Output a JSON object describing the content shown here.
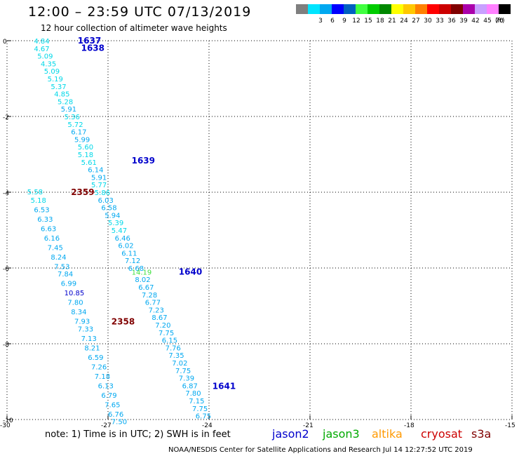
{
  "header": {
    "title": "12:00 – 23:59 UTC 07/13/2019",
    "subtitle": "12 hour collection of altimeter wave heights"
  },
  "color_scale": {
    "unit_label": "(ft)",
    "bins": [
      {
        "label": "",
        "color": "#7f7f7f"
      },
      {
        "label": "3",
        "color": "#00e5ff"
      },
      {
        "label": "6",
        "color": "#00a8f0"
      },
      {
        "label": "9",
        "color": "#0000ff"
      },
      {
        "label": "12",
        "color": "#0060c0"
      },
      {
        "label": "15",
        "color": "#40ff40"
      },
      {
        "label": "18",
        "color": "#00cc00"
      },
      {
        "label": "21",
        "color": "#008800"
      },
      {
        "label": "24",
        "color": "#ffff00"
      },
      {
        "label": "27",
        "color": "#ffc800"
      },
      {
        "label": "30",
        "color": "#ff8000"
      },
      {
        "label": "33",
        "color": "#ff0000"
      },
      {
        "label": "36",
        "color": "#cc0000"
      },
      {
        "label": "39",
        "color": "#800000"
      },
      {
        "label": "42",
        "color": "#aa00aa"
      },
      {
        "label": "45",
        "color": "#c8a0ff"
      },
      {
        "label": "70",
        "color": "#ff80ff"
      },
      {
        "label": "",
        "color": "#000000"
      }
    ]
  },
  "chart_data": {
    "type": "scatter",
    "xlim": [
      -30,
      -15
    ],
    "ylim": [
      -10,
      0
    ],
    "x_ticks": [
      "-30",
      "-27",
      "-24",
      "-21",
      "-18",
      "-15"
    ],
    "y_ticks": [
      "0",
      "-2",
      "-4",
      "-6",
      "-8",
      "-10"
    ],
    "track_labels": [
      {
        "text": "1637",
        "x": -27.9,
        "y": 0.02,
        "color": "#0000cc"
      },
      {
        "text": "1638",
        "x": -27.8,
        "y": -0.18,
        "color": "#0000cc"
      },
      {
        "text": "1639",
        "x": -26.3,
        "y": -3.15,
        "color": "#0000cc"
      },
      {
        "text": "2359",
        "x": -28.1,
        "y": -3.98,
        "color": "#800000"
      },
      {
        "text": "1640",
        "x": -24.9,
        "y": -6.08,
        "color": "#0000cc"
      },
      {
        "text": "2358",
        "x": -26.9,
        "y": -7.4,
        "color": "#800000"
      },
      {
        "text": "1641",
        "x": -23.9,
        "y": -9.1,
        "color": "#0000cc"
      }
    ],
    "points": [
      {
        "v": "4.84",
        "x": -29.2,
        "y": 0.0,
        "color": "#00d8e8"
      },
      {
        "v": "4.67",
        "x": -29.2,
        "y": -0.2,
        "color": "#00d8e8"
      },
      {
        "v": "5.09",
        "x": -29.1,
        "y": -0.4,
        "color": "#00d8e8"
      },
      {
        "v": "4.35",
        "x": -29.0,
        "y": -0.6,
        "color": "#00d8e8"
      },
      {
        "v": "5.09",
        "x": -28.9,
        "y": -0.8,
        "color": "#00d8e8"
      },
      {
        "v": "5.19",
        "x": -28.8,
        "y": -1.0,
        "color": "#00d8e8"
      },
      {
        "v": "5.37",
        "x": -28.7,
        "y": -1.2,
        "color": "#00d8e8"
      },
      {
        "v": "4.85",
        "x": -28.6,
        "y": -1.4,
        "color": "#00d8e8"
      },
      {
        "v": "5.28",
        "x": -28.5,
        "y": -1.6,
        "color": "#00d8e8"
      },
      {
        "v": "5.91",
        "x": -28.4,
        "y": -1.8,
        "color": "#00a8f0"
      },
      {
        "v": "5.36",
        "x": -28.3,
        "y": -2.0,
        "color": "#00d8e8"
      },
      {
        "v": "5.72",
        "x": -28.2,
        "y": -2.2,
        "color": "#00d8e8"
      },
      {
        "v": "6.17",
        "x": -28.1,
        "y": -2.4,
        "color": "#00a8f0"
      },
      {
        "v": "5.99",
        "x": -28.0,
        "y": -2.6,
        "color": "#00a8f0"
      },
      {
        "v": "5.60",
        "x": -27.9,
        "y": -2.8,
        "color": "#00d8e8"
      },
      {
        "v": "5.18",
        "x": -27.9,
        "y": -3.0,
        "color": "#00d8e8"
      },
      {
        "v": "5.61",
        "x": -27.8,
        "y": -3.2,
        "color": "#00d8e8"
      },
      {
        "v": "6.14",
        "x": -27.6,
        "y": -3.4,
        "color": "#00a8f0"
      },
      {
        "v": "5.91",
        "x": -27.5,
        "y": -3.6,
        "color": "#00a8f0"
      },
      {
        "v": "5.77",
        "x": -27.5,
        "y": -3.8,
        "color": "#00d8e8"
      },
      {
        "v": "5.86",
        "x": -27.4,
        "y": -4.0,
        "color": "#00d8e8"
      },
      {
        "v": "6.03",
        "x": -27.3,
        "y": -4.2,
        "color": "#00a8f0"
      },
      {
        "v": "6.58",
        "x": -27.2,
        "y": -4.4,
        "color": "#00a8f0"
      },
      {
        "v": "5.94",
        "x": -27.1,
        "y": -4.6,
        "color": "#00a8f0"
      },
      {
        "v": "5.39",
        "x": -27.0,
        "y": -4.8,
        "color": "#00d8e8"
      },
      {
        "v": "5.47",
        "x": -26.9,
        "y": -5.0,
        "color": "#00d8e8"
      },
      {
        "v": "6.46",
        "x": -26.8,
        "y": -5.2,
        "color": "#00a8f0"
      },
      {
        "v": "6.02",
        "x": -26.7,
        "y": -5.4,
        "color": "#00a8f0"
      },
      {
        "v": "6.11",
        "x": -26.6,
        "y": -5.6,
        "color": "#00a8f0"
      },
      {
        "v": "7.12",
        "x": -26.5,
        "y": -5.8,
        "color": "#00a8f0"
      },
      {
        "v": "6.68",
        "x": -26.4,
        "y": -6.0,
        "color": "#00a8f0"
      },
      {
        "v": "14.19",
        "x": -26.3,
        "y": -6.1,
        "color": "#40e040"
      },
      {
        "v": "8.02",
        "x": -26.2,
        "y": -6.3,
        "color": "#00a8f0"
      },
      {
        "v": "6.67",
        "x": -26.1,
        "y": -6.5,
        "color": "#00a8f0"
      },
      {
        "v": "7.28",
        "x": -26.0,
        "y": -6.7,
        "color": "#00a8f0"
      },
      {
        "v": "6.77",
        "x": -25.9,
        "y": -6.9,
        "color": "#00a8f0"
      },
      {
        "v": "7.23",
        "x": -25.8,
        "y": -7.1,
        "color": "#00a8f0"
      },
      {
        "v": "8.67",
        "x": -25.7,
        "y": -7.3,
        "color": "#00a8f0"
      },
      {
        "v": "7.20",
        "x": -25.6,
        "y": -7.5,
        "color": "#00a8f0"
      },
      {
        "v": "7.75",
        "x": -25.5,
        "y": -7.7,
        "color": "#00a8f0"
      },
      {
        "v": "6.15",
        "x": -25.4,
        "y": -7.9,
        "color": "#00a8f0"
      },
      {
        "v": "7.76",
        "x": -25.3,
        "y": -8.1,
        "color": "#00a8f0"
      },
      {
        "v": "7.35",
        "x": -25.2,
        "y": -8.3,
        "color": "#00a8f0"
      },
      {
        "v": "7.02",
        "x": -25.1,
        "y": -8.5,
        "color": "#00a8f0"
      },
      {
        "v": "7.75",
        "x": -25.0,
        "y": -8.7,
        "color": "#00a8f0"
      },
      {
        "v": "7.39",
        "x": -24.9,
        "y": -8.9,
        "color": "#00a8f0"
      },
      {
        "v": "6.87",
        "x": -24.8,
        "y": -9.1,
        "color": "#00a8f0"
      },
      {
        "v": "7.80",
        "x": -24.7,
        "y": -9.3,
        "color": "#00a8f0"
      },
      {
        "v": "7.15",
        "x": -24.6,
        "y": -9.5,
        "color": "#00a8f0"
      },
      {
        "v": "7.75",
        "x": -24.5,
        "y": -9.7,
        "color": "#00a8f0"
      },
      {
        "v": "6.75",
        "x": -24.4,
        "y": -9.9,
        "color": "#00a8f0"
      },
      {
        "v": "5.58",
        "x": -29.4,
        "y": -3.98,
        "color": "#00d8e8"
      },
      {
        "v": "5.18",
        "x": -29.3,
        "y": -4.2,
        "color": "#00d8e8"
      },
      {
        "v": "6.53",
        "x": -29.2,
        "y": -4.45,
        "color": "#00a8f0"
      },
      {
        "v": "6.33",
        "x": -29.1,
        "y": -4.7,
        "color": "#00a8f0"
      },
      {
        "v": "6.63",
        "x": -29.0,
        "y": -4.95,
        "color": "#00a8f0"
      },
      {
        "v": "6.16",
        "x": -28.9,
        "y": -5.2,
        "color": "#00a8f0"
      },
      {
        "v": "7.45",
        "x": -28.8,
        "y": -5.45,
        "color": "#00a8f0"
      },
      {
        "v": "8.24",
        "x": -28.7,
        "y": -5.7,
        "color": "#00a8f0"
      },
      {
        "v": "7.53",
        "x": -28.6,
        "y": -5.95,
        "color": "#00a8f0"
      },
      {
        "v": "7.84",
        "x": -28.5,
        "y": -6.15,
        "color": "#00a8f0"
      },
      {
        "v": "6.99",
        "x": -28.4,
        "y": -6.4,
        "color": "#00a8f0"
      },
      {
        "v": "10.85",
        "x": -28.3,
        "y": -6.65,
        "color": "#0000cc"
      },
      {
        "v": "7.80",
        "x": -28.2,
        "y": -6.9,
        "color": "#00a8f0"
      },
      {
        "v": "8.34",
        "x": -28.1,
        "y": -7.15,
        "color": "#00a8f0"
      },
      {
        "v": "7.93",
        "x": -28.0,
        "y": -7.4,
        "color": "#00a8f0"
      },
      {
        "v": "7.33",
        "x": -27.9,
        "y": -7.6,
        "color": "#00a8f0"
      },
      {
        "v": "7.13",
        "x": -27.8,
        "y": -7.85,
        "color": "#00a8f0"
      },
      {
        "v": "8.21",
        "x": -27.7,
        "y": -8.1,
        "color": "#00a8f0"
      },
      {
        "v": "6.59",
        "x": -27.6,
        "y": -8.35,
        "color": "#00a8f0"
      },
      {
        "v": "7.26",
        "x": -27.5,
        "y": -8.6,
        "color": "#00a8f0"
      },
      {
        "v": "7.18",
        "x": -27.4,
        "y": -8.85,
        "color": "#00a8f0"
      },
      {
        "v": "6.13",
        "x": -27.3,
        "y": -9.1,
        "color": "#00a8f0"
      },
      {
        "v": "6.79",
        "x": -27.2,
        "y": -9.35,
        "color": "#00a8f0"
      },
      {
        "v": "7.65",
        "x": -27.1,
        "y": -9.6,
        "color": "#00a8f0"
      },
      {
        "v": "6.76",
        "x": -27.0,
        "y": -9.85,
        "color": "#00a8f0"
      },
      {
        "v": "7.50",
        "x": -26.9,
        "y": -10.05,
        "color": "#00a8f0"
      }
    ]
  },
  "footer": {
    "note": "note: 1) Time is in UTC; 2) SWH is in feet",
    "legend": [
      {
        "name": "jason2",
        "color": "#0000cc"
      },
      {
        "name": "jason3",
        "color": "#00aa00"
      },
      {
        "name": "altika",
        "color": "#ff9900"
      },
      {
        "name": "cryosat",
        "color": "#cc0000"
      },
      {
        "name": "s3a",
        "color": "#800000"
      }
    ],
    "credit": "NOAA/NESDIS Center for Satellite Applications and Research   Jul 14 12:27:52 UTC 2019"
  }
}
